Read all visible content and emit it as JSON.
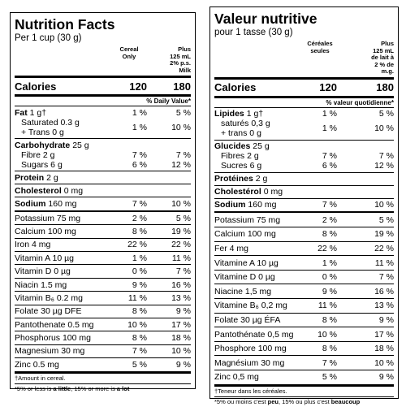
{
  "english": {
    "title": "Nutrition Facts",
    "serving": "Per 1 cup (30 g)",
    "col1": [
      "Cereal",
      "Only"
    ],
    "col2": [
      "Plus",
      "125 mL",
      "2% p.s.",
      "Milk"
    ],
    "calories": {
      "name": "Calories",
      "v1": 120,
      "v2": 180
    },
    "dv_header": "% Daily Value*",
    "macros": [
      {
        "name": "Fat",
        "amount": "1 g†",
        "v1": "1 %",
        "v2": "5 %",
        "subs": [
          {
            "lines": [
              "Saturated 0.3 g",
              "+ Trans 0 g"
            ],
            "v1": "1 %",
            "v2": "10 %"
          }
        ]
      },
      {
        "name": "Carbohydrate",
        "amount": "25 g",
        "subs": [
          {
            "lines": [
              "Fibre 2 g"
            ],
            "v1": "7 %",
            "v2": "7 %"
          },
          {
            "lines": [
              "Sugars 6 g"
            ],
            "v1": "6 %",
            "v2": "12 %"
          }
        ]
      },
      {
        "name": "Protein",
        "amount": "2 g"
      },
      {
        "name": "Cholesterol",
        "amount": "0 mg"
      },
      {
        "name": "Sodium",
        "amount": "160 mg",
        "v1": "7 %",
        "v2": "10 %"
      }
    ],
    "micros": [
      {
        "label": "Potassium 75 mg",
        "v1": "2 %",
        "v2": "5 %"
      },
      {
        "label": "Calcium 100 mg",
        "v1": "8 %",
        "v2": "19 %"
      },
      {
        "label": "Iron 4 mg",
        "v1": "22 %",
        "v2": "22 %"
      },
      {
        "label": "Vitamin A 10 µg",
        "v1": "1 %",
        "v2": "11 %"
      },
      {
        "label": "Vitamin D 0 µg",
        "v1": "0 %",
        "v2": "7 %"
      },
      {
        "label": "Niacin 1.5 mg",
        "v1": "9 %",
        "v2": "16 %"
      },
      {
        "label": "Vitamin B₆ 0.2 mg",
        "v1": "11 %",
        "v2": "13 %"
      },
      {
        "label": "Folate 30 µg DFE",
        "v1": "8 %",
        "v2": "9 %"
      },
      {
        "label": "Pantothenate 0.5 mg",
        "v1": "10 %",
        "v2": "17 %"
      },
      {
        "label": "Phosphorus 100 mg",
        "v1": "8 %",
        "v2": "18 %"
      },
      {
        "label": "Magnesium 30 mg",
        "v1": "7 %",
        "v2": "10 %"
      },
      {
        "label": "Zinc 0.5 mg",
        "v1": "5 %",
        "v2": "9 %"
      }
    ],
    "footnote": "†Amount in cereal.",
    "legend": [
      "*5% or less is ",
      "a little",
      ", 15% or more is ",
      "a lot"
    ]
  },
  "french": {
    "title": "Valeur nutritive",
    "serving": "pour 1 tasse (30 g)",
    "col1": [
      "Céréales",
      "seules"
    ],
    "col2": [
      "Plus",
      "125 mL",
      "de lait à",
      "2 % de",
      "m.g."
    ],
    "calories": {
      "name": "Calories",
      "v1": 120,
      "v2": 180
    },
    "dv_header": "% valeur quotidienne*",
    "macros": [
      {
        "name": "Lipides",
        "amount": "1 g†",
        "v1": "1 %",
        "v2": "5 %",
        "subs": [
          {
            "lines": [
              "saturés 0,3 g",
              "+ trans 0 g"
            ],
            "v1": "1 %",
            "v2": "10 %"
          }
        ]
      },
      {
        "name": "Glucides",
        "amount": "25 g",
        "subs": [
          {
            "lines": [
              "Fibres 2 g"
            ],
            "v1": "7 %",
            "v2": "7 %"
          },
          {
            "lines": [
              "Sucres 6 g"
            ],
            "v1": "6 %",
            "v2": "12 %"
          }
        ]
      },
      {
        "name": "Protéines",
        "amount": "2 g"
      },
      {
        "name": "Cholestérol",
        "amount": "0 mg"
      },
      {
        "name": "Sodium",
        "amount": "160 mg",
        "v1": "7 %",
        "v2": "10 %"
      }
    ],
    "micros": [
      {
        "label": "Potassium 75 mg",
        "v1": "2 %",
        "v2": "5 %"
      },
      {
        "label": "Calcium 100 mg",
        "v1": "8 %",
        "v2": "19 %"
      },
      {
        "label": "Fer 4 mg",
        "v1": "22 %",
        "v2": "22 %"
      },
      {
        "label": "Vitamine A 10 µg",
        "v1": "1 %",
        "v2": "11 %"
      },
      {
        "label": "Vitamine D 0 µg",
        "v1": "0 %",
        "v2": "7 %"
      },
      {
        "label": "Niacine 1,5 mg",
        "v1": "9 %",
        "v2": "16 %"
      },
      {
        "label": "Vitamine B₆ 0,2 mg",
        "v1": "11 %",
        "v2": "13 %"
      },
      {
        "label": "Folate 30 µg ÉFA",
        "v1": "8 %",
        "v2": "9 %"
      },
      {
        "label": "Pantothénate 0,5 mg",
        "v1": "10 %",
        "v2": "17 %"
      },
      {
        "label": "Phosphore 100 mg",
        "v1": "8 %",
        "v2": "18 %"
      },
      {
        "label": "Magnésium 30 mg",
        "v1": "7 %",
        "v2": "10 %"
      },
      {
        "label": "Zinc 0,5 mg",
        "v1": "5 %",
        "v2": "9 %"
      }
    ],
    "footnote": "†Teneur dans les céréales.",
    "legend": [
      "*5% ou moins c'est ",
      "peu",
      ", 15% ou plus c'est ",
      "beaucoup"
    ]
  }
}
